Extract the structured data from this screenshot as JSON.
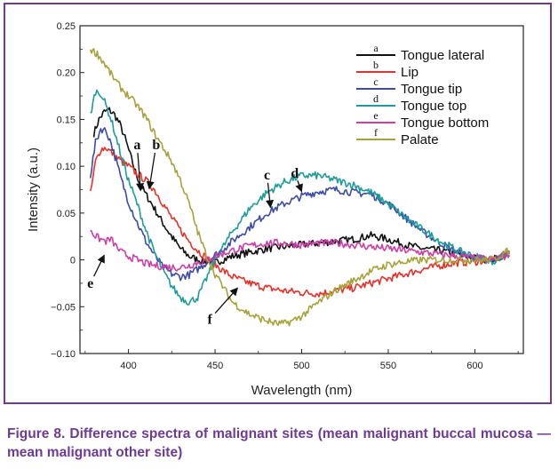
{
  "caption": "Figure 8. Difference spectra of malignant sites (mean malignant buccal mucosa — mean malignant other site)",
  "chart_data": {
    "type": "line",
    "xlabel": "Wavelength (nm)",
    "ylabel": "Intensity (a.u.)",
    "xlim": [
      372,
      628
    ],
    "ylim": [
      -0.1,
      0.25
    ],
    "xticks": [
      400,
      450,
      500,
      550,
      600
    ],
    "yticks": [
      -0.1,
      -0.05,
      0,
      0.05,
      0.1,
      0.15,
      0.2,
      0.25
    ],
    "xtick_labels": [
      "400",
      "450",
      "500",
      "550",
      "600"
    ],
    "ytick_labels": [
      "−0.10",
      "−0.05",
      "0",
      "0.05",
      "0.10",
      "0.15",
      "0.20",
      "0.25"
    ],
    "legend_position": "top-right",
    "series": [
      {
        "key": "a",
        "name": "Tongue lateral",
        "color": "#111111",
        "x": [
          380,
          383,
          386,
          389,
          392,
          395,
          398,
          401,
          404,
          407,
          410,
          414,
          418,
          422,
          426,
          430,
          435,
          440,
          445,
          450,
          460,
          470,
          480,
          490,
          500,
          510,
          520,
          530,
          540,
          550,
          560,
          570,
          580,
          590,
          600,
          610,
          620
        ],
        "y": [
          0.135,
          0.15,
          0.158,
          0.16,
          0.155,
          0.145,
          0.13,
          0.112,
          0.094,
          0.08,
          0.07,
          0.058,
          0.045,
          0.033,
          0.022,
          0.012,
          0.004,
          0.0,
          -0.002,
          -0.003,
          0.004,
          0.008,
          0.012,
          0.014,
          0.016,
          0.018,
          0.02,
          0.022,
          0.026,
          0.022,
          0.016,
          0.012,
          0.01,
          0.006,
          0.002,
          0.0,
          0.008
        ]
      },
      {
        "key": "b",
        "name": "Lip",
        "color": "#e5322a",
        "x": [
          378,
          381,
          384,
          387,
          390,
          393,
          396,
          400,
          405,
          410,
          415,
          420,
          425,
          430,
          435,
          440,
          445,
          450,
          455,
          460,
          470,
          480,
          490,
          500,
          510,
          520,
          530,
          540,
          550,
          560,
          570,
          580,
          590,
          600,
          610,
          620
        ],
        "y": [
          0.07,
          0.105,
          0.118,
          0.12,
          0.115,
          0.11,
          0.105,
          0.1,
          0.092,
          0.085,
          0.075,
          0.06,
          0.045,
          0.032,
          0.02,
          0.01,
          0.002,
          -0.005,
          -0.012,
          -0.018,
          -0.025,
          -0.03,
          -0.033,
          -0.035,
          -0.036,
          -0.033,
          -0.03,
          -0.025,
          -0.02,
          -0.015,
          -0.01,
          -0.006,
          -0.003,
          -0.002,
          0.0,
          0.008
        ]
      },
      {
        "key": "c",
        "name": "Tongue tip",
        "color": "#3c4aa8",
        "x": [
          378,
          381,
          384,
          387,
          390,
          393,
          396,
          400,
          405,
          410,
          415,
          420,
          425,
          430,
          435,
          440,
          445,
          450,
          455,
          460,
          470,
          480,
          490,
          500,
          510,
          520,
          530,
          540,
          550,
          560,
          570,
          580,
          590,
          600,
          610,
          620
        ],
        "y": [
          0.09,
          0.125,
          0.14,
          0.138,
          0.125,
          0.105,
          0.085,
          0.062,
          0.04,
          0.02,
          0.005,
          -0.008,
          -0.015,
          -0.018,
          -0.016,
          -0.01,
          -0.003,
          0.005,
          0.012,
          0.02,
          0.035,
          0.05,
          0.06,
          0.068,
          0.073,
          0.075,
          0.072,
          0.07,
          0.06,
          0.045,
          0.03,
          0.018,
          0.008,
          0.002,
          -0.002,
          0.008
        ]
      },
      {
        "key": "d",
        "name": "Tongue top",
        "color": "#1e9c9c",
        "x": [
          378,
          381,
          384,
          387,
          390,
          393,
          396,
          400,
          405,
          410,
          415,
          420,
          425,
          430,
          435,
          440,
          445,
          450,
          455,
          460,
          470,
          480,
          490,
          500,
          510,
          520,
          530,
          540,
          550,
          560,
          570,
          580,
          590,
          600,
          610,
          620
        ],
        "y": [
          0.155,
          0.18,
          0.178,
          0.165,
          0.15,
          0.13,
          0.11,
          0.085,
          0.06,
          0.032,
          0.008,
          -0.012,
          -0.028,
          -0.04,
          -0.045,
          -0.04,
          -0.02,
          0.0,
          0.015,
          0.03,
          0.055,
          0.072,
          0.083,
          0.09,
          0.09,
          0.085,
          0.08,
          0.072,
          0.06,
          0.045,
          0.032,
          0.02,
          0.01,
          0.004,
          -0.002,
          0.008
        ]
      },
      {
        "key": "e",
        "name": "Tongue bottom",
        "color": "#cc3fa8",
        "x": [
          378,
          381,
          384,
          387,
          390,
          393,
          396,
          400,
          405,
          410,
          415,
          420,
          425,
          430,
          435,
          440,
          445,
          450,
          460,
          470,
          480,
          490,
          500,
          510,
          520,
          530,
          540,
          550,
          560,
          570,
          580,
          590,
          600,
          610,
          620
        ],
        "y": [
          0.033,
          0.025,
          0.022,
          0.02,
          0.022,
          0.014,
          0.008,
          0.004,
          0.0,
          -0.004,
          -0.006,
          -0.007,
          -0.008,
          -0.008,
          -0.006,
          -0.003,
          0.0,
          0.004,
          0.01,
          0.015,
          0.018,
          0.018,
          0.016,
          0.018,
          0.018,
          0.016,
          0.014,
          0.012,
          0.01,
          0.008,
          0.006,
          0.004,
          0.002,
          0.0,
          0.005
        ]
      },
      {
        "key": "f",
        "name": "Palate",
        "color": "#a8a23a",
        "x": [
          378,
          382,
          386,
          390,
          395,
          400,
          405,
          410,
          415,
          420,
          425,
          430,
          435,
          440,
          445,
          450,
          455,
          460,
          465,
          470,
          475,
          480,
          485,
          490,
          495,
          500,
          510,
          520,
          530,
          540,
          550,
          560,
          570,
          580,
          590,
          600,
          610,
          620
        ],
        "y": [
          0.225,
          0.22,
          0.21,
          0.198,
          0.185,
          0.175,
          0.165,
          0.152,
          0.135,
          0.12,
          0.105,
          0.085,
          0.06,
          0.03,
          0.005,
          -0.015,
          -0.03,
          -0.045,
          -0.052,
          -0.058,
          -0.062,
          -0.065,
          -0.068,
          -0.068,
          -0.065,
          -0.06,
          -0.045,
          -0.032,
          -0.022,
          -0.012,
          -0.005,
          -0.002,
          0.0,
          0.0,
          0.0,
          0.0,
          0.0,
          0.01
        ]
      }
    ],
    "annotations": [
      {
        "text": "a",
        "tx": 405,
        "ty": 0.118,
        "ax": 407,
        "ay": 0.074
      },
      {
        "text": "b",
        "tx": 416,
        "ty": 0.118,
        "ax": 412,
        "ay": 0.076
      },
      {
        "text": "c",
        "tx": 480,
        "ty": 0.086,
        "ax": 482,
        "ay": 0.056
      },
      {
        "text": "d",
        "tx": 496,
        "ty": 0.088,
        "ax": 500,
        "ay": 0.073
      },
      {
        "text": "e",
        "tx": 378,
        "ty": -0.03,
        "ax": 386,
        "ay": 0.005
      },
      {
        "text": "f",
        "tx": 447,
        "ty": -0.068,
        "ax": 463,
        "ay": -0.03
      }
    ]
  }
}
